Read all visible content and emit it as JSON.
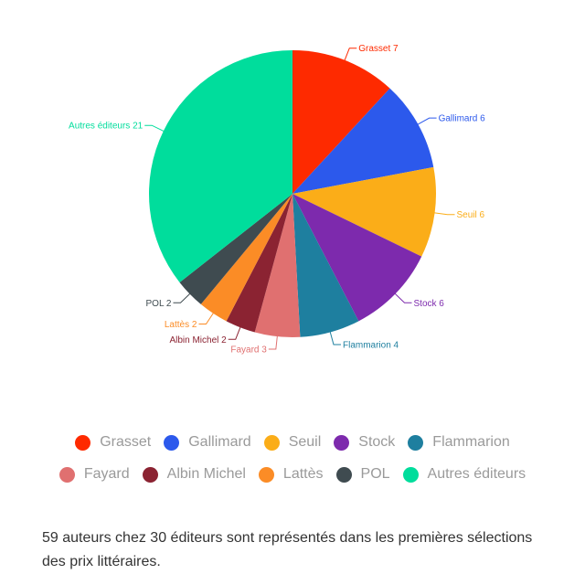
{
  "chart_data": {
    "type": "pie",
    "labels": [
      "Grasset 7",
      "Gallimard 6",
      "Seuil 6",
      "Stock 6",
      "Flammarion 4",
      "Fayard 3",
      "Albin Michel 2",
      "Lattès 2",
      "POL 2",
      "Autres éditeurs 21"
    ],
    "categories": [
      "Grasset",
      "Gallimard",
      "Seuil",
      "Stock",
      "Flammarion",
      "Fayard",
      "Albin Michel",
      "Lattès",
      "POL",
      "Autres éditeurs"
    ],
    "values": [
      7,
      6,
      6,
      6,
      4,
      3,
      2,
      2,
      2,
      21
    ],
    "colors": [
      "#fe2a00",
      "#2c59ec",
      "#fbad18",
      "#7d2aad",
      "#1e7f9f",
      "#e07070",
      "#8b2332",
      "#fb8c26",
      "#3f4b50",
      "#00dd9c"
    ],
    "legend_position": "bottom"
  },
  "caption": "59 auteurs chez 30 éditeurs sont représentés dans les premières sélections des prix littéraires."
}
